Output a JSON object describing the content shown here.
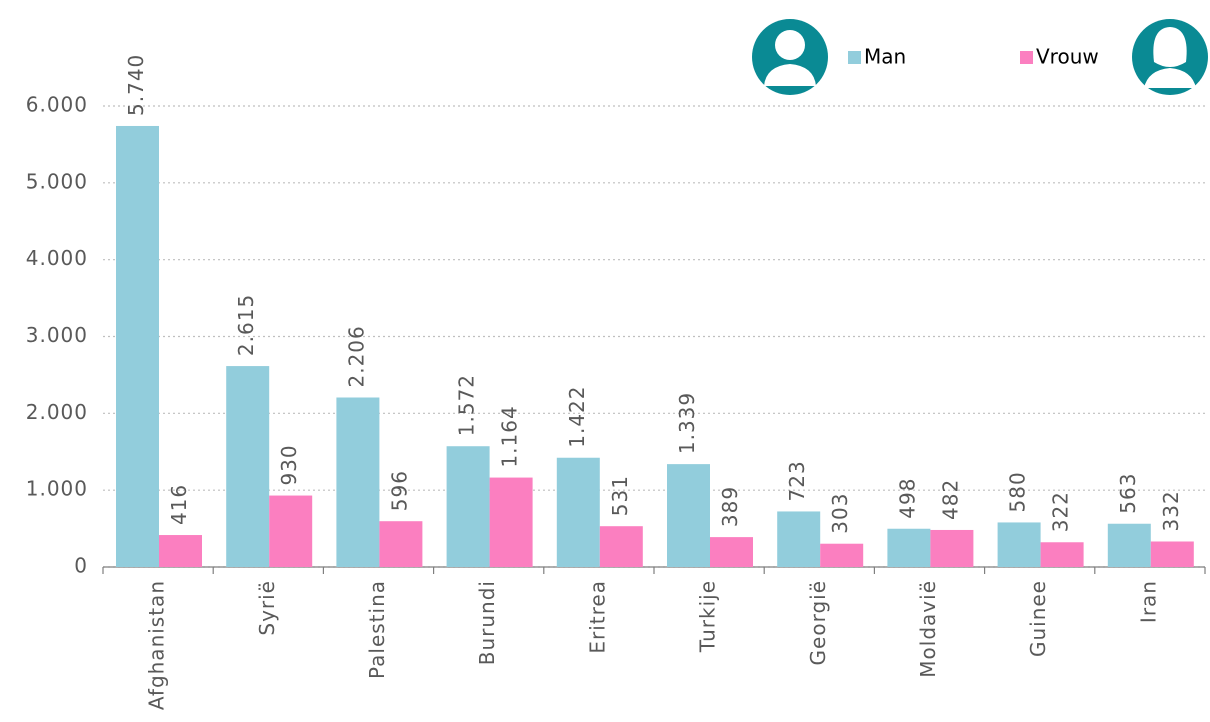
{
  "chart_data": {
    "type": "bar",
    "categories": [
      "Afghanistan",
      "Syrië",
      "Palestina",
      "Burundi",
      "Eritrea",
      "Turkije",
      "Georgië",
      "Moldavië",
      "Guinee",
      "Iran"
    ],
    "series": [
      {
        "name": "Man",
        "color": "#92cddc",
        "values": [
          5740,
          2615,
          2206,
          1572,
          1422,
          1339,
          723,
          498,
          580,
          563
        ],
        "value_labels": [
          "5.740",
          "2.615",
          "2.206",
          "1.572",
          "1.422",
          "1.339",
          "723",
          "498",
          "580",
          "563"
        ]
      },
      {
        "name": "Vrouw",
        "color": "#fb7fc0",
        "values": [
          416,
          930,
          596,
          1164,
          531,
          389,
          303,
          482,
          322,
          332
        ],
        "value_labels": [
          "416",
          "930",
          "596",
          "1.164",
          "531",
          "389",
          "303",
          "482",
          "322",
          "332"
        ]
      }
    ],
    "ylim": [
      0,
      6000
    ],
    "yticks": [
      0,
      {
        "value": 1000,
        "label": "1.000"
      },
      {
        "value": 2000,
        "label": "2.000"
      },
      {
        "value": 3000,
        "label": "3.000"
      },
      {
        "value": 4000,
        "label": "4.000"
      },
      {
        "value": 5000,
        "label": "5.000"
      },
      {
        "value": 6000,
        "label": "6.000"
      }
    ],
    "grid": true,
    "legend": "top-right"
  }
}
